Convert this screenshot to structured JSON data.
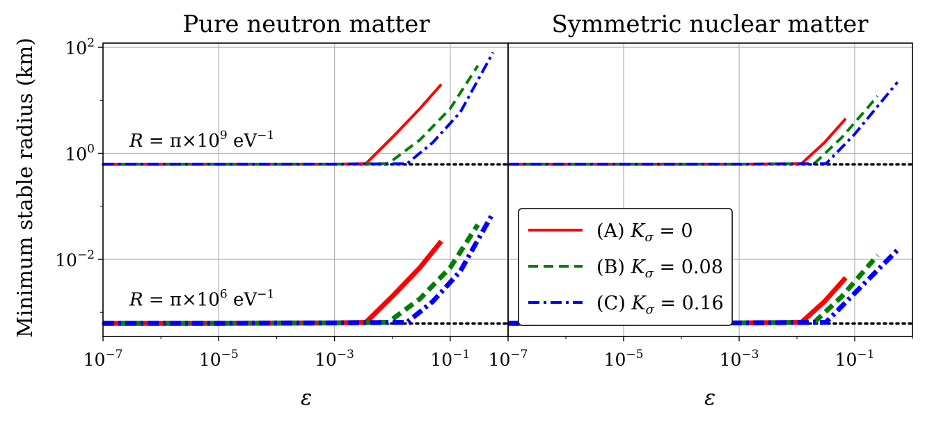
{
  "chart_data": [
    {
      "type": "line",
      "title": "Pure neutron matter",
      "xlabel": "ε",
      "ylabel": "Minimum stable radius (km)",
      "x_scale": "log",
      "y_scale": "log",
      "xlim": [
        1e-07,
        1
      ],
      "ylim": [
        0.00035,
        120
      ],
      "x_ticks": [
        {
          "v": 1e-07,
          "base": "10",
          "exp": "−7"
        },
        {
          "v": 1e-05,
          "base": "10",
          "exp": "−5"
        },
        {
          "v": 0.001,
          "base": "10",
          "exp": "−3"
        },
        {
          "v": 0.1,
          "base": "10",
          "exp": "−1"
        }
      ],
      "y_ticks": [
        {
          "v": 100,
          "base": "10",
          "exp": "2"
        },
        {
          "v": 1,
          "base": "10",
          "exp": "0"
        },
        {
          "v": 0.01,
          "base": "10",
          "exp": "−2"
        }
      ],
      "grid": true,
      "annotations": [
        {
          "text": "R = π×10",
          "exp": "9",
          "unit": " eV",
          "unit_exp": "−1",
          "x": 3e-07,
          "y": 1.05
        },
        {
          "text": "R = π×10",
          "exp": "6",
          "unit": " eV",
          "unit_exp": "−1",
          "x": 3e-07,
          "y": 0.00105
        }
      ],
      "reference_lines": [
        {
          "y": 0.617,
          "style": "dotted"
        },
        {
          "y": 0.000617,
          "style": "dotted"
        }
      ],
      "series": [
        {
          "name": "(A) K_σ = 0",
          "group": "upper",
          "x": [
            1e-07,
            1e-05,
            0.001,
            0.0035,
            0.01,
            0.03,
            0.07
          ],
          "y": [
            0.62,
            0.62,
            0.625,
            0.64,
            2.0,
            7.0,
            20.0
          ]
        },
        {
          "name": "(B) K_σ = 0.08",
          "group": "upper",
          "x": [
            1e-07,
            1e-05,
            0.001,
            0.0085,
            0.03,
            0.1,
            0.3
          ],
          "y": [
            0.62,
            0.62,
            0.625,
            0.64,
            1.8,
            7.0,
            45.0
          ]
        },
        {
          "name": "(C) K_σ = 0.16",
          "group": "upper",
          "x": [
            1e-07,
            1e-05,
            0.001,
            0.018,
            0.05,
            0.15,
            0.55
          ],
          "y": [
            0.62,
            0.62,
            0.625,
            0.64,
            1.6,
            6.0,
            80.0
          ]
        },
        {
          "name": "(A) K_σ = 0",
          "group": "lower",
          "x": [
            1e-07,
            1e-05,
            0.001,
            0.0035,
            0.01,
            0.03,
            0.07
          ],
          "y": [
            0.00062,
            0.00062,
            0.00063,
            0.00065,
            0.002,
            0.007,
            0.022
          ]
        },
        {
          "name": "(B) K_σ = 0.08",
          "group": "lower",
          "x": [
            1e-07,
            1e-05,
            0.001,
            0.0085,
            0.03,
            0.1,
            0.3
          ],
          "y": [
            0.00062,
            0.00062,
            0.00063,
            0.00065,
            0.0018,
            0.007,
            0.045
          ]
        },
        {
          "name": "(C) K_σ = 0.16",
          "group": "lower",
          "x": [
            1e-07,
            1e-05,
            0.001,
            0.018,
            0.05,
            0.15,
            0.55
          ],
          "y": [
            0.00062,
            0.00062,
            0.00063,
            0.00065,
            0.0016,
            0.006,
            0.075
          ]
        }
      ]
    },
    {
      "type": "line",
      "title": "Symmetric nuclear matter",
      "xlabel": "ε",
      "ylabel": "",
      "x_scale": "log",
      "y_scale": "log",
      "xlim": [
        1e-07,
        1
      ],
      "ylim": [
        0.00035,
        120
      ],
      "x_ticks": [
        {
          "v": 1e-07,
          "base": "10",
          "exp": "−7"
        },
        {
          "v": 1e-05,
          "base": "10",
          "exp": "−5"
        },
        {
          "v": 0.001,
          "base": "10",
          "exp": "−3"
        },
        {
          "v": 0.1,
          "base": "10",
          "exp": "−1"
        }
      ],
      "grid": true,
      "reference_lines": [
        {
          "y": 0.617,
          "style": "dotted"
        },
        {
          "y": 0.000617,
          "style": "dotted"
        }
      ],
      "legend": {
        "position": "center-right",
        "entries": [
          {
            "label": "(A) ",
            "sym": "K",
            "sub": "σ",
            "val": " = 0",
            "color": "#ff0000",
            "style": "solid"
          },
          {
            "label": "(B) ",
            "sym": "K",
            "sub": "σ",
            "val": " = 0.08",
            "color": "#008000",
            "style": "dashed"
          },
          {
            "label": "(C) ",
            "sym": "K",
            "sub": "σ",
            "val": " = 0.16",
            "color": "#0000ff",
            "style": "dashdot"
          }
        ]
      },
      "series": [
        {
          "name": "(A) K_σ = 0",
          "group": "upper",
          "x": [
            1e-07,
            1e-05,
            0.001,
            0.012,
            0.03,
            0.07
          ],
          "y": [
            0.62,
            0.62,
            0.625,
            0.64,
            1.6,
            4.5
          ]
        },
        {
          "name": "(B) K_σ = 0.08",
          "group": "upper",
          "x": [
            1e-07,
            1e-05,
            0.001,
            0.02,
            0.06,
            0.25
          ],
          "y": [
            0.62,
            0.62,
            0.625,
            0.64,
            2.0,
            12.0
          ]
        },
        {
          "name": "(C) K_σ = 0.16",
          "group": "upper",
          "x": [
            1e-07,
            1e-05,
            0.001,
            0.032,
            0.1,
            0.55
          ],
          "y": [
            0.62,
            0.62,
            0.625,
            0.64,
            2.3,
            22.0
          ]
        },
        {
          "name": "(A) K_σ = 0",
          "group": "lower",
          "x": [
            1e-07,
            1e-05,
            0.001,
            0.012,
            0.03,
            0.07
          ],
          "y": [
            0.00062,
            0.00062,
            0.00063,
            0.00065,
            0.0016,
            0.0045
          ]
        },
        {
          "name": "(B) K_σ = 0.08",
          "group": "lower",
          "x": [
            1e-07,
            1e-05,
            0.001,
            0.02,
            0.06,
            0.25
          ],
          "y": [
            0.00062,
            0.00062,
            0.00063,
            0.00065,
            0.002,
            0.012
          ]
        },
        {
          "name": "(C) K_σ = 0.16",
          "group": "lower",
          "x": [
            1e-07,
            1e-05,
            0.001,
            0.032,
            0.1,
            0.55
          ],
          "y": [
            0.00062,
            0.00062,
            0.00063,
            0.00065,
            0.0023,
            0.015
          ]
        }
      ]
    }
  ],
  "colors": {
    "A": "#ff0000",
    "B": "#008000",
    "C": "#0000ff",
    "grid": "#b0b0b0",
    "axis": "#000000"
  }
}
